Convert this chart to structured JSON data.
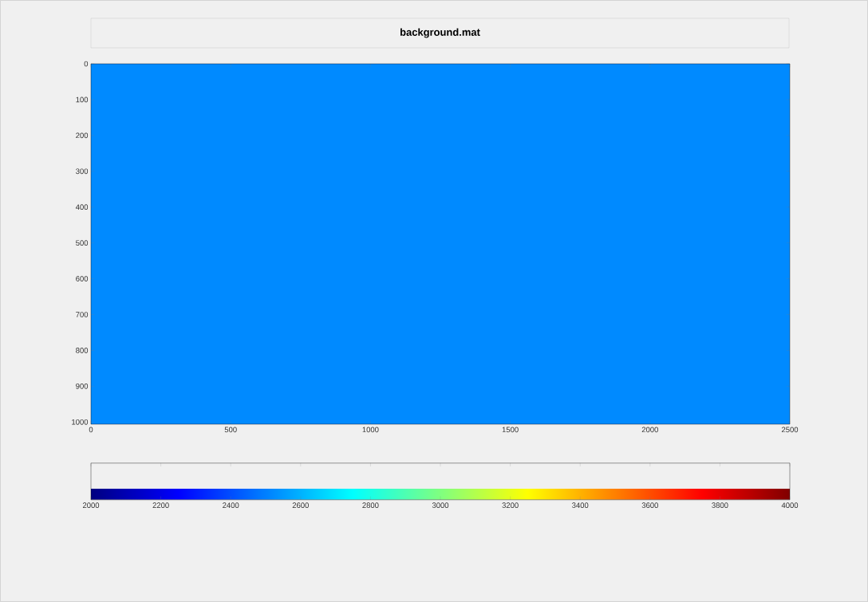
{
  "chart_data": {
    "type": "heatmap",
    "title": "background.mat",
    "cells": [
      [
        2520
      ]
    ],
    "xlim": [
      0,
      2500
    ],
    "xticks": [
      0,
      500,
      1000,
      1500,
      2000,
      2500
    ],
    "ylim": [
      1006,
      0
    ],
    "yticks": [
      0,
      100,
      200,
      300,
      400,
      500,
      600,
      700,
      800,
      900,
      1000
    ],
    "clim": [
      2000,
      4000
    ],
    "cticks": [
      2000,
      2200,
      2400,
      2600,
      2800,
      3000,
      3200,
      3400,
      3600,
      3800,
      4000
    ]
  }
}
